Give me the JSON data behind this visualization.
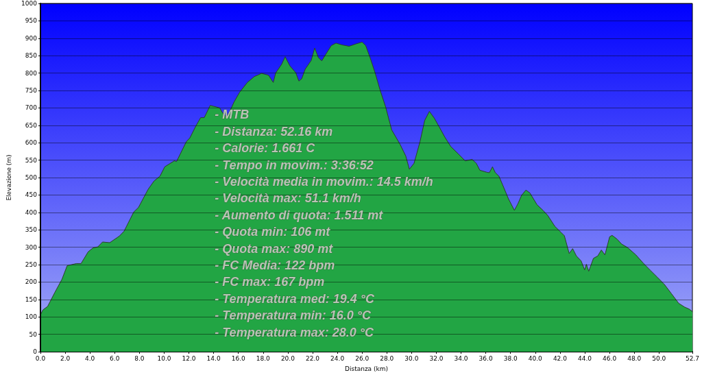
{
  "chart_data": {
    "type": "area",
    "xlabel": "Distanza (km)",
    "ylabel": "Elevazione (m)",
    "color": "#22a544",
    "x": [
      0,
      0.2,
      0.58,
      1.16,
      1.74,
      2.16,
      2.9,
      3.28,
      3.86,
      4.25,
      4.64,
      5.02,
      5.6,
      6.38,
      6.76,
      7.54,
      7.92,
      8.7,
      9.18,
      9.66,
      10.05,
      10.82,
      11.0,
      11.79,
      12.08,
      12.56,
      12.95,
      13.24,
      13.72,
      14.2,
      14.49,
      14.72,
      15.07,
      15.65,
      16.1,
      16.72,
      17.29,
      17.87,
      18.44,
      18.82,
      19.01,
      19.49,
      19.78,
      20.16,
      20.64,
      20.89,
      21.12,
      21.4,
      21.88,
      22.17,
      22.46,
      22.74,
      23.03,
      23.51,
      23.89,
      24.37,
      24.95,
      25.52,
      26.0,
      26.29,
      26.67,
      27.05,
      27.44,
      27.91,
      28.39,
      29.06,
      29.53,
      29.82,
      30.2,
      30.68,
      31.06,
      31.44,
      31.83,
      32.21,
      32.69,
      33.17,
      33.75,
      34.33,
      34.9,
      35.23,
      35.52,
      36.1,
      36.29,
      36.54,
      36.77,
      37.06,
      37.35,
      37.83,
      38.31,
      38.6,
      38.89,
      39.24,
      39.56,
      40.14,
      40.62,
      41.01,
      41.58,
      42.07,
      42.35,
      42.74,
      43.02,
      43.32,
      43.7,
      43.99,
      44.13,
      44.32,
      44.7,
      45.05,
      45.34,
      45.63,
      46.01,
      46.21,
      46.59,
      46.98,
      47.46,
      48.13,
      48.71,
      49.29,
      49.86,
      50.44,
      51.02,
      51.59,
      52.08,
      52.46,
      52.7
    ],
    "values": [
      106,
      120,
      130,
      170,
      208,
      247,
      253,
      253,
      287,
      298,
      301,
      315,
      313,
      332,
      346,
      401,
      414,
      466,
      490,
      504,
      531,
      548,
      546,
      603,
      614,
      648,
      672,
      672,
      707,
      703,
      700,
      686,
      672,
      717,
      745,
      773,
      790,
      799,
      794,
      773,
      800,
      825,
      847,
      821,
      801,
      777,
      784,
      811,
      836,
      872,
      845,
      835,
      852,
      879,
      886,
      881,
      877,
      884,
      889,
      879,
      842,
      801,
      753,
      702,
      637,
      596,
      562,
      524,
      541,
      603,
      664,
      690,
      671,
      647,
      616,
      589,
      569,
      548,
      552,
      541,
      521,
      515,
      514,
      531,
      514,
      504,
      480,
      439,
      406,
      425,
      449,
      464,
      456,
      422,
      406,
      391,
      360,
      343,
      333,
      282,
      296,
      275,
      261,
      235,
      251,
      231,
      268,
      275,
      292,
      278,
      330,
      334,
      324,
      309,
      299,
      278,
      255,
      234,
      214,
      193,
      166,
      139,
      128,
      122,
      115
    ],
    "xlim": [
      0,
      52.7
    ],
    "xticks": [
      {
        "value": 0,
        "label": "0.0"
      },
      {
        "value": 2,
        "label": "2.0"
      },
      {
        "value": 4,
        "label": "4.0"
      },
      {
        "value": 6,
        "label": "6.0"
      },
      {
        "value": 8,
        "label": "8.0"
      },
      {
        "value": 10,
        "label": "10.0"
      },
      {
        "value": 12,
        "label": "12.0"
      },
      {
        "value": 14,
        "label": "14.0"
      },
      {
        "value": 16,
        "label": "16.0"
      },
      {
        "value": 18,
        "label": "18.0"
      },
      {
        "value": 20,
        "label": "20.0"
      },
      {
        "value": 22,
        "label": "22.0"
      },
      {
        "value": 24,
        "label": "24.0"
      },
      {
        "value": 26,
        "label": "26.0"
      },
      {
        "value": 28,
        "label": "28.0"
      },
      {
        "value": 30,
        "label": "30.0"
      },
      {
        "value": 32,
        "label": "32.0"
      },
      {
        "value": 34,
        "label": "34.0"
      },
      {
        "value": 36,
        "label": "36.0"
      },
      {
        "value": 38,
        "label": "38.0"
      },
      {
        "value": 40,
        "label": "40.0"
      },
      {
        "value": 42,
        "label": "42.0"
      },
      {
        "value": 44,
        "label": "44.0"
      },
      {
        "value": 46,
        "label": "46.0"
      },
      {
        "value": 48,
        "label": "48.0"
      },
      {
        "value": 50,
        "label": "50.0"
      },
      52.7
    ],
    "ylim": [
      0,
      1000
    ],
    "yticks": [
      0,
      50,
      100,
      150,
      200,
      250,
      300,
      350,
      400,
      450,
      500,
      550,
      600,
      650,
      700,
      750,
      800,
      850,
      900,
      950,
      1000
    ],
    "grid": "y",
    "marker": "none",
    "line_style": "solid",
    "annotations": [
      "- MTB",
      "- Distanza: 52.16 km",
      "- Calorie: 1.661 C",
      "- Tempo in movim.: 3:36:52",
      "- Velocità media in movim.: 14.5 km/h",
      "- Velocità max: 51.1 km/h",
      "- Aumento di quota: 1.511 mt",
      "- Quota min: 106 mt",
      "- Quota max: 890 mt",
      "- FC Media: 122 bpm",
      "- FC max: 167 bpm",
      "- Temperatura med: 19.4 °C",
      "- Temperatura min: 16.0 °C",
      "- Temperatura max: 28.0 °C"
    ]
  }
}
